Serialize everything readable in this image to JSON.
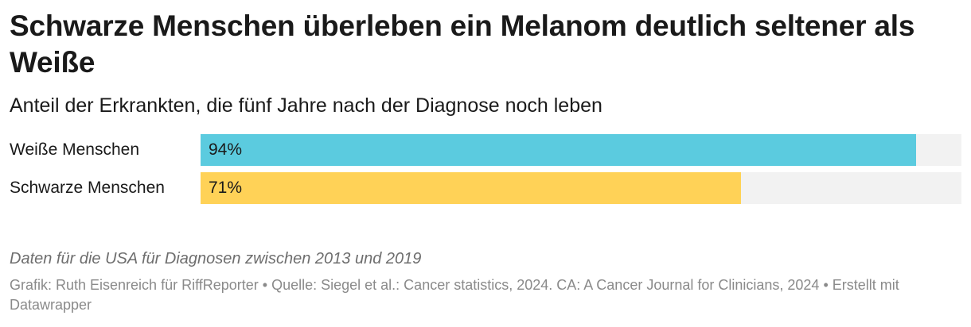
{
  "chart_data": {
    "type": "bar",
    "orientation": "horizontal",
    "title": "Schwarze Menschen überleben ein Melanom deutlich seltener als Weiße",
    "subtitle": "Anteil der Erkrankten, die fünf Jahre nach der Diagnose noch leben",
    "categories": [
      "Weiße Menschen",
      "Schwarze Menschen"
    ],
    "values": [
      94,
      71
    ],
    "value_labels": [
      "94%",
      "71%"
    ],
    "colors": [
      "#5bcbdf",
      "#ffd257"
    ],
    "track_color": "#f2f2f2",
    "xlim": [
      0,
      100
    ],
    "grid": false
  },
  "notes": "Daten für die USA für Diagnosen zwischen 2013 und 2019",
  "source": "Grafik: Ruth Eisenreich für RiffReporter • Quelle: Siegel et al.: Cancer statistics, 2024. CA: A Cancer Journal for Clinicians, 2024 • Erstellt mit Datawrapper"
}
